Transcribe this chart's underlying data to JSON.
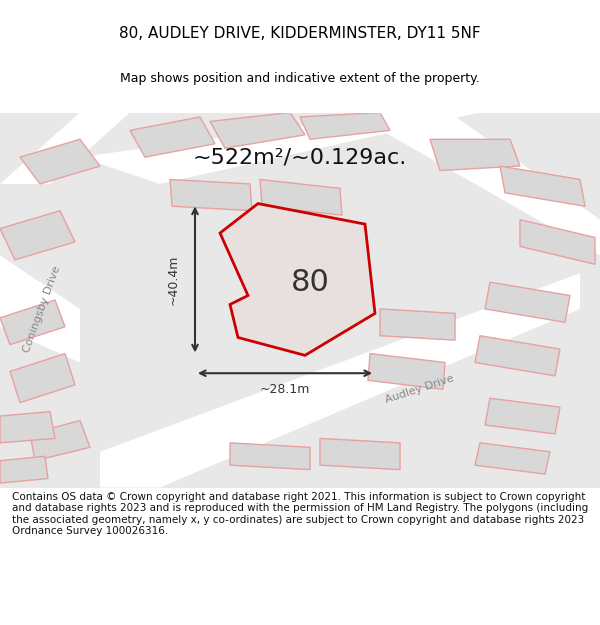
{
  "title": "80, AUDLEY DRIVE, KIDDERMINSTER, DY11 5NF",
  "subtitle": "Map shows position and indicative extent of the property.",
  "area_label": "~522m²/~0.129ac.",
  "plot_number": "80",
  "dim_width": "~28.1m",
  "dim_height": "~40.4m",
  "street_label1": "Coningsby Drive",
  "street_label2": "Audley Drive",
  "footer": "Contains OS data © Crown copyright and database right 2021. This information is subject to Crown copyright and database rights 2023 and is reproduced with the permission of HM Land Registry. The polygons (including the associated geometry, namely x, y co-ordinates) are subject to Crown copyright and database rights 2023 Ordnance Survey 100026316.",
  "bg_color": "#e8e8e8",
  "map_bg": "#f0f0f0",
  "building_fill": "#d8d8d8",
  "building_edge": "#e8a0a0",
  "highlight_fill": "#e8e0e0",
  "highlight_edge": "#cc0000",
  "road_color": "#ffffff",
  "title_fontsize": 11,
  "subtitle_fontsize": 9,
  "footer_fontsize": 7.5
}
